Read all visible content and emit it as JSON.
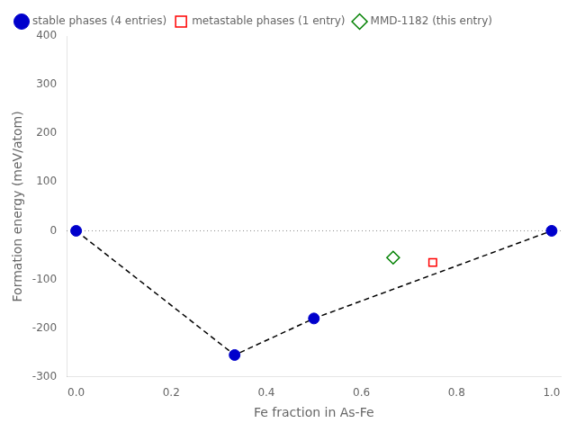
{
  "chart_data": {
    "type": "scatter",
    "xlabel": "Fe fraction in As-Fe",
    "ylabel": "Formation energy (meV/atom)",
    "xlim": [
      -0.02,
      1.02
    ],
    "xticks": [
      {
        "value": 0.0,
        "label": "0.0"
      },
      0.2,
      0.4,
      0.6,
      0.8,
      {
        "value": 1.0,
        "label": "1.0"
      }
    ],
    "ylim": [
      -300,
      400
    ],
    "yticks": [
      -300,
      -200,
      -100,
      0,
      100,
      200,
      300,
      400
    ],
    "grid": false,
    "legend": "upper left",
    "series": [
      {
        "type": "hline",
        "values": [
          0
        ],
        "color": "#888888",
        "line_style": "dotted"
      },
      {
        "type": "line",
        "x": [
          0.0,
          0.3333,
          0.5,
          1.0
        ],
        "values": [
          0.0,
          -255.0,
          -180.0,
          0.0
        ],
        "color": "black",
        "line_style": "dashed"
      },
      {
        "type": "scatter",
        "name": "stable phases (4 entries)",
        "x": [
          0.0,
          0.3333,
          0.5,
          1.0
        ],
        "values": [
          0.0,
          -255.0,
          -180.0,
          0.0
        ],
        "color": "#0000cc",
        "marker": "circle"
      },
      {
        "type": "scatter",
        "name": "metastable phases (1 entry)",
        "x": [
          0.75
        ],
        "values": [
          -65.0
        ],
        "color": "red",
        "marker": "open square"
      },
      {
        "type": "scatter",
        "name": "MMD-1182 (this entry)",
        "x": [
          0.6667
        ],
        "values": [
          -55.0
        ],
        "color": "green",
        "marker": "open diamond"
      }
    ]
  }
}
